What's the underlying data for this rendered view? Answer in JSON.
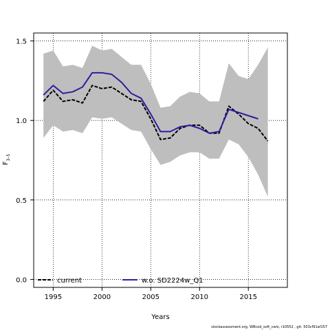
{
  "chart_data": {
    "type": "line",
    "title": "",
    "xlabel": "Years",
    "ylabel_main": "F",
    "ylabel_sub": "3–5",
    "xlim": [
      1993,
      2019
    ],
    "ylim": [
      -0.05,
      1.55
    ],
    "xticks": [
      1995,
      2000,
      2005,
      2010,
      2015
    ],
    "yticks": [
      0.0,
      0.5,
      1.0,
      1.5
    ],
    "ytick_labels": [
      "0.0",
      "0.5",
      "1.0",
      "1.5"
    ],
    "grid": "dotted",
    "legend_position": "bottom",
    "band": {
      "x": [
        1994,
        1995,
        1996,
        1997,
        1998,
        1999,
        2000,
        2001,
        2002,
        2003,
        2004,
        2005,
        2006,
        2007,
        2008,
        2009,
        2010,
        2011,
        2012,
        2013,
        2014,
        2015,
        2016,
        2017
      ],
      "upper": [
        1.42,
        1.44,
        1.34,
        1.35,
        1.33,
        1.47,
        1.44,
        1.45,
        1.4,
        1.35,
        1.35,
        1.23,
        1.08,
        1.09,
        1.15,
        1.18,
        1.17,
        1.12,
        1.12,
        1.36,
        1.28,
        1.26,
        1.35,
        1.46
      ],
      "lower": [
        0.89,
        0.97,
        0.93,
        0.94,
        0.92,
        1.02,
        1.01,
        1.02,
        0.98,
        0.94,
        0.93,
        0.82,
        0.72,
        0.74,
        0.78,
        0.8,
        0.8,
        0.76,
        0.76,
        0.88,
        0.85,
        0.77,
        0.66,
        0.52
      ],
      "color": "#bebebe"
    },
    "series": [
      {
        "name": "current",
        "color": "#000000",
        "x": [
          1994,
          1995,
          1996,
          1997,
          1998,
          1999,
          2000,
          2001,
          2002,
          2003,
          2004,
          2005,
          2006,
          2007,
          2008,
          2009,
          2010,
          2011,
          2012,
          2013,
          2014,
          2015,
          2016,
          2017
        ],
        "values": [
          1.12,
          1.19,
          1.12,
          1.13,
          1.11,
          1.22,
          1.2,
          1.21,
          1.17,
          1.13,
          1.12,
          1.01,
          0.88,
          0.89,
          0.95,
          0.97,
          0.97,
          0.92,
          0.92,
          1.09,
          1.04,
          0.98,
          0.95,
          0.87
        ]
      },
      {
        "name": "w.o. SD2224w_Q1",
        "color": "#2d1f9e",
        "x": [
          1994,
          1995,
          1996,
          1997,
          1998,
          1999,
          2000,
          2001,
          2002,
          2003,
          2004,
          2005,
          2006,
          2007,
          2008,
          2009,
          2010,
          2011,
          2012,
          2013,
          2014,
          2015,
          2016
        ],
        "values": [
          1.16,
          1.22,
          1.17,
          1.18,
          1.21,
          1.3,
          1.3,
          1.29,
          1.24,
          1.17,
          1.14,
          1.04,
          0.93,
          0.93,
          0.96,
          0.97,
          0.95,
          0.92,
          0.93,
          1.07,
          1.05,
          1.03,
          1.01
        ]
      }
    ]
  },
  "footer": "stockassessment.org, WBcod_soft_cwls, r10552 , git: 503cf91af157"
}
